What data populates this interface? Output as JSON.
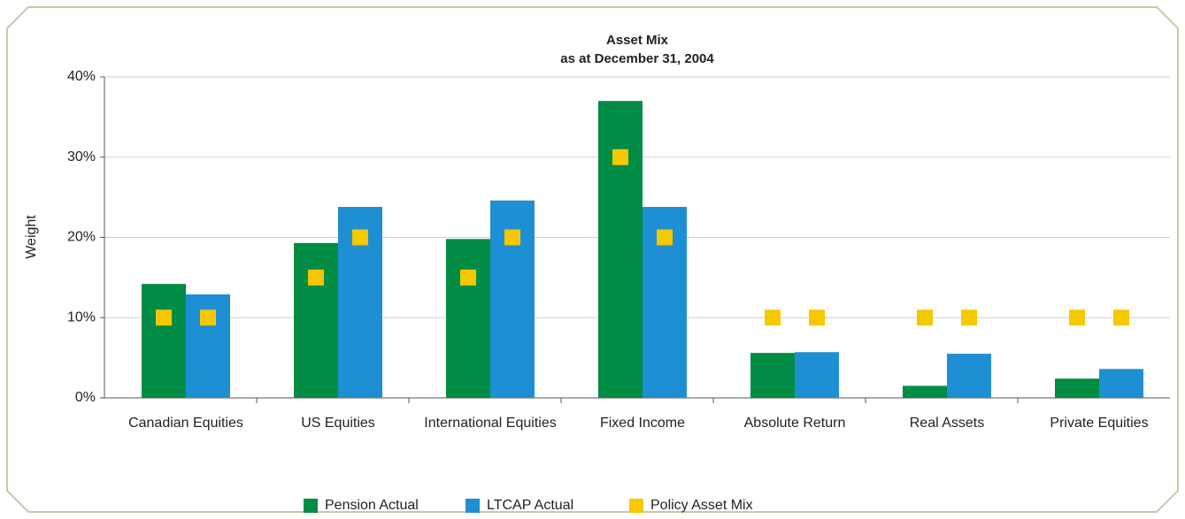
{
  "chart_data": {
    "type": "bar",
    "title": "Asset Mix",
    "subtitle": "as at December 31, 2004",
    "y_label": "Weight",
    "categories": [
      "Canadian Equities",
      "US Equities",
      "International Equities",
      "Fixed Income",
      "Absolute Return",
      "Real Assets",
      "Private Equities"
    ],
    "series": [
      {
        "name": "Pension Actual",
        "color": "#008c44",
        "values": [
          14.2,
          19.3,
          19.8,
          37.0,
          5.6,
          1.5,
          2.4
        ]
      },
      {
        "name": "LTCAP Actual",
        "color": "#1e8fd2",
        "values": [
          12.9,
          23.8,
          24.6,
          23.8,
          5.7,
          5.5,
          3.6
        ]
      },
      {
        "name": "Policy Asset Mix",
        "color": "#f5c800",
        "values": [
          [
            10,
            10
          ],
          [
            15,
            20
          ],
          [
            15,
            20
          ],
          [
            30,
            20
          ],
          [
            10,
            10
          ],
          [
            10,
            10
          ],
          [
            10,
            10
          ]
        ]
      }
    ],
    "ylim": [
      0,
      40
    ],
    "yticks": [
      {
        "value": 0,
        "label": "0%"
      },
      {
        "value": 10,
        "label": "10%"
      },
      {
        "value": 20,
        "label": "20%"
      },
      {
        "value": 30,
        "label": "30%"
      },
      {
        "value": 40,
        "label": "40%"
      }
    ],
    "grid": true,
    "legend": "bottom"
  }
}
